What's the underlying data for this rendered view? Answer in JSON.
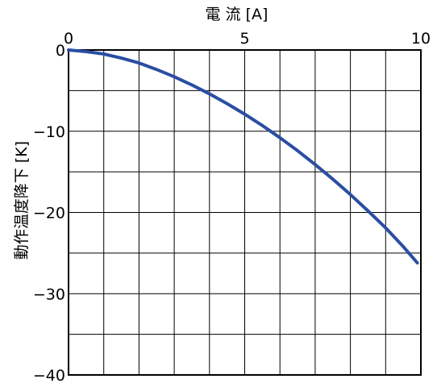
{
  "chart_data": {
    "type": "line",
    "xlabel": "電 流 [A]",
    "ylabel": "動作温度降下 [K]",
    "xlim": [
      0,
      10
    ],
    "ylim": [
      -40,
      0
    ],
    "x_ticks": [
      0,
      5,
      10
    ],
    "x_tick_labels": [
      "0",
      "5",
      "10"
    ],
    "y_ticks": [
      0,
      -10,
      -20,
      -30,
      -40
    ],
    "y_tick_labels": [
      "0",
      "−10",
      "−20",
      "−30",
      "−40"
    ],
    "x_minor_step": 1,
    "y_minor_step": 5,
    "grid": true,
    "series": [
      {
        "color": "#2b4ea2",
        "x": [
          0,
          0.5,
          1,
          1.5,
          2,
          2.5,
          3,
          3.5,
          4,
          4.5,
          5,
          5.5,
          6,
          6.5,
          7,
          7.5,
          8,
          8.5,
          9,
          9.5,
          9.9
        ],
        "y": [
          0,
          -0.2,
          -0.5,
          -1.0,
          -1.6,
          -2.4,
          -3.3,
          -4.3,
          -5.4,
          -6.6,
          -7.9,
          -9.3,
          -10.8,
          -12.4,
          -14.1,
          -15.9,
          -17.8,
          -19.8,
          -21.9,
          -24.2,
          -26.2
        ]
      }
    ]
  }
}
